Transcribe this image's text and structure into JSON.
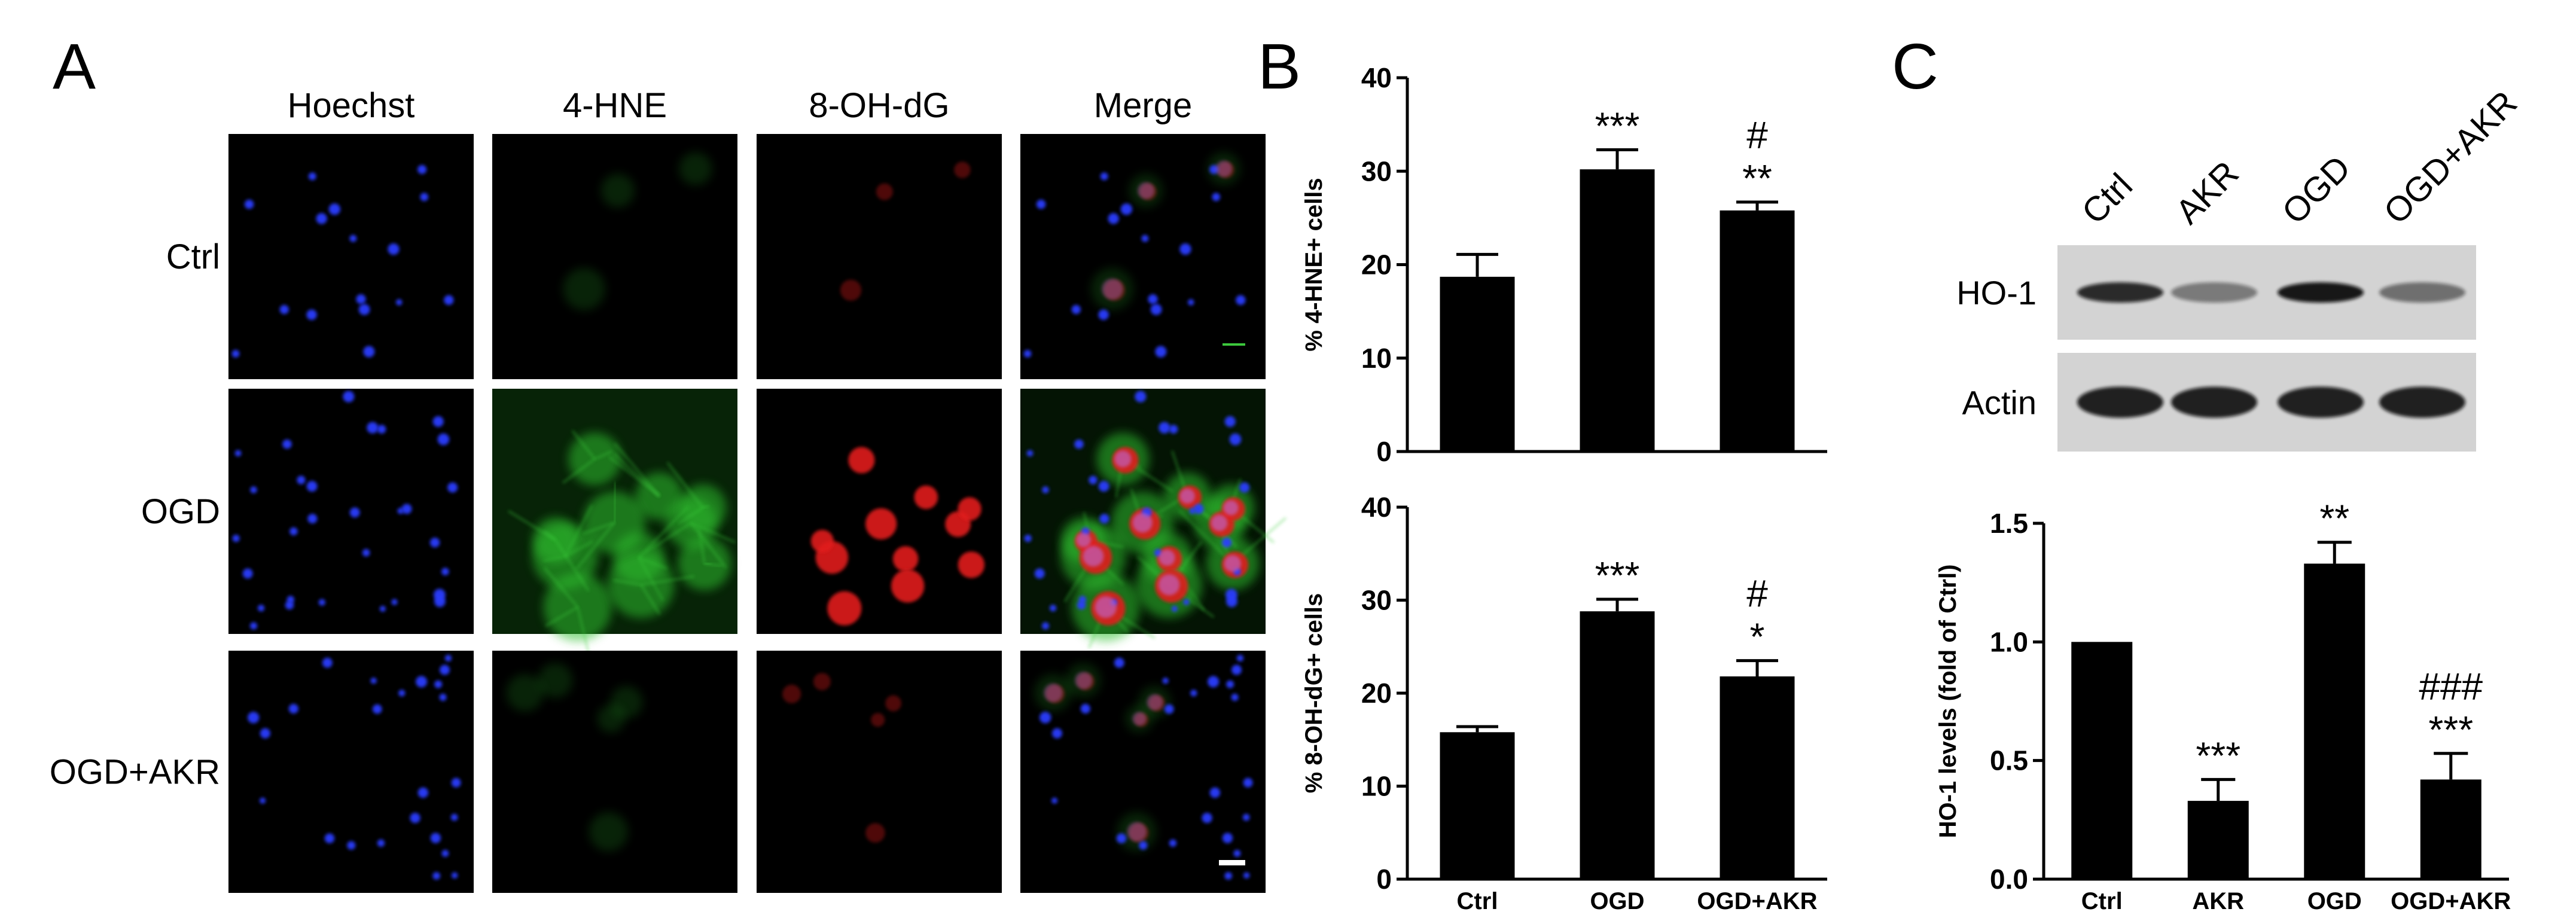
{
  "panel_a": {
    "letter": "A",
    "columns": [
      "Hoechst",
      "4-HNE",
      "8-OH-dG",
      "Merge"
    ],
    "rows": [
      "Ctrl",
      "OGD",
      "OGD+AKR"
    ]
  },
  "panel_b": {
    "letter": "B"
  },
  "panel_c": {
    "letter": "C",
    "blot_lanes": [
      "Ctrl",
      "AKR",
      "OGD",
      "OGD+AKR"
    ],
    "blot_rows": [
      "HO-1",
      "Actin"
    ],
    "ho1_band_intensity": [
      1.0,
      0.33,
      1.33,
      0.42
    ]
  },
  "chart_data": [
    {
      "type": "bar",
      "categories": [
        "Ctrl",
        "OGD",
        "OGD+AKR"
      ],
      "values": [
        18.7,
        30.2,
        25.8
      ],
      "errors": [
        2.4,
        2.1,
        0.9
      ],
      "annotations": [
        "",
        "***",
        "#\n**"
      ],
      "ylabel": "% 4-HNE+ cells",
      "ylim": [
        0,
        40
      ],
      "yticks": [
        0,
        10,
        20,
        30,
        40
      ],
      "yticklabels": [
        "0",
        "10",
        "20",
        "30",
        "40"
      ],
      "show_xlabels": false,
      "grid": false
    },
    {
      "type": "bar",
      "categories": [
        "Ctrl",
        "OGD",
        "OGD+AKR"
      ],
      "values": [
        15.8,
        28.8,
        21.8
      ],
      "errors": [
        0.6,
        1.3,
        1.7
      ],
      "annotations": [
        "",
        "***",
        "#\n*"
      ],
      "ylabel": "% 8-OH-dG+ cells",
      "ylim": [
        0,
        40
      ],
      "yticks": [
        0,
        10,
        20,
        30,
        40
      ],
      "yticklabels": [
        "0",
        "10",
        "20",
        "30",
        "40"
      ],
      "show_xlabels": true,
      "grid": false
    },
    {
      "type": "bar",
      "categories": [
        "Ctrl",
        "AKR",
        "OGD",
        "OGD+AKR"
      ],
      "values": [
        1.0,
        0.33,
        1.33,
        0.42
      ],
      "errors": [
        0.0,
        0.09,
        0.09,
        0.11
      ],
      "annotations": [
        "",
        "***",
        "**",
        "###\n***"
      ],
      "ylabel": "HO-1 levels (fold of Ctrl)",
      "ylim": [
        0,
        1.5
      ],
      "yticks": [
        0,
        0.5,
        1.0,
        1.5
      ],
      "yticklabels": [
        "0.0",
        "0.5",
        "1.0",
        "1.5"
      ],
      "show_xlabels": true,
      "grid": false
    }
  ]
}
